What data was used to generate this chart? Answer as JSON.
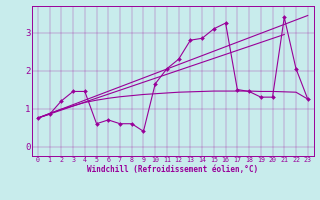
{
  "title": "",
  "xlabel": "Windchill (Refroidissement éolien,°C)",
  "background_color": "#c8ecec",
  "line_color": "#990099",
  "xlim": [
    -0.5,
    23.5
  ],
  "ylim": [
    -0.25,
    3.7
  ],
  "yticks": [
    0,
    1,
    2,
    3
  ],
  "xticks": [
    0,
    1,
    2,
    3,
    4,
    5,
    6,
    7,
    8,
    9,
    10,
    11,
    12,
    13,
    14,
    15,
    16,
    17,
    18,
    19,
    20,
    21,
    22,
    23
  ],
  "series1_x": [
    0,
    1,
    2,
    3,
    4,
    5,
    6,
    7,
    8,
    9,
    10,
    11,
    12,
    13,
    14,
    15,
    16,
    17,
    18,
    19,
    20,
    21,
    22,
    23
  ],
  "series1_y": [
    0.75,
    0.85,
    1.2,
    1.45,
    1.45,
    0.6,
    0.7,
    0.6,
    0.6,
    0.4,
    1.65,
    2.05,
    2.3,
    2.8,
    2.85,
    3.1,
    3.25,
    1.5,
    1.45,
    1.3,
    1.3,
    3.4,
    2.05,
    1.25
  ],
  "series2_x": [
    0,
    1,
    2,
    3,
    4,
    5,
    6,
    7,
    8,
    9,
    10,
    11,
    12,
    13,
    14,
    15,
    16,
    17,
    18,
    19,
    20,
    21,
    22,
    23
  ],
  "series2_y": [
    0.75,
    0.87,
    0.98,
    1.07,
    1.16,
    1.22,
    1.27,
    1.31,
    1.34,
    1.37,
    1.39,
    1.41,
    1.43,
    1.44,
    1.45,
    1.46,
    1.46,
    1.46,
    1.46,
    1.45,
    1.45,
    1.44,
    1.43,
    1.25
  ],
  "series3_x": [
    0,
    23
  ],
  "series3_y": [
    0.75,
    3.45
  ],
  "series4_x": [
    0,
    21
  ],
  "series4_y": [
    0.75,
    2.95
  ],
  "figwidth": 3.2,
  "figheight": 2.0,
  "dpi": 100
}
